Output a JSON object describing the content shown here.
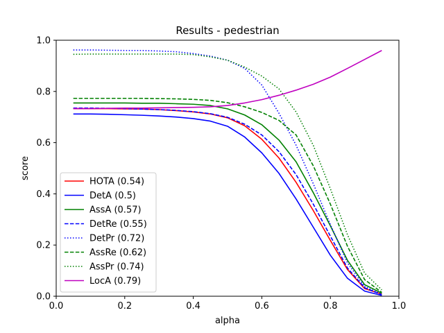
{
  "chart_data": {
    "type": "line",
    "title": "Results - pedestrian",
    "xlabel": "alpha",
    "ylabel": "score",
    "xlim": [
      0.0,
      1.0
    ],
    "ylim": [
      0.0,
      1.0
    ],
    "x_ticks": [
      "0.0",
      "0.2",
      "0.4",
      "0.6",
      "0.8",
      "1.0"
    ],
    "y_ticks": [
      "0.0",
      "0.2",
      "0.4",
      "0.6",
      "0.8",
      "1.0"
    ],
    "grid": false,
    "legend_position": "lower-left",
    "x": [
      0.05,
      0.1,
      0.15,
      0.2,
      0.25,
      0.3,
      0.35,
      0.4,
      0.45,
      0.5,
      0.55,
      0.6,
      0.65,
      0.7,
      0.75,
      0.8,
      0.85,
      0.9,
      0.95
    ],
    "series": [
      {
        "name": "HOTA (0.54)",
        "color": "#ff0000",
        "dash": "solid",
        "values": [
          0.733,
          0.733,
          0.733,
          0.732,
          0.731,
          0.729,
          0.725,
          0.72,
          0.712,
          0.697,
          0.666,
          0.613,
          0.54,
          0.445,
          0.335,
          0.218,
          0.104,
          0.03,
          0.008
        ]
      },
      {
        "name": "DetA (0.5)",
        "color": "#0000ff",
        "dash": "solid",
        "values": [
          0.712,
          0.712,
          0.711,
          0.709,
          0.707,
          0.704,
          0.7,
          0.694,
          0.684,
          0.664,
          0.622,
          0.56,
          0.48,
          0.38,
          0.27,
          0.16,
          0.07,
          0.02,
          0.003
        ]
      },
      {
        "name": "AssA (0.57)",
        "color": "#008000",
        "dash": "solid",
        "values": [
          0.755,
          0.755,
          0.755,
          0.755,
          0.754,
          0.754,
          0.752,
          0.75,
          0.745,
          0.732,
          0.708,
          0.67,
          0.61,
          0.525,
          0.405,
          0.275,
          0.14,
          0.045,
          0.012
        ]
      },
      {
        "name": "DetRe (0.55)",
        "color": "#0000ff",
        "dash": "dashed",
        "values": [
          0.735,
          0.735,
          0.734,
          0.733,
          0.731,
          0.729,
          0.726,
          0.721,
          0.713,
          0.699,
          0.672,
          0.63,
          0.565,
          0.475,
          0.36,
          0.235,
          0.11,
          0.033,
          0.006
        ]
      },
      {
        "name": "DetPr (0.72)",
        "color": "#0000ff",
        "dash": "dotted",
        "values": [
          0.962,
          0.962,
          0.961,
          0.96,
          0.96,
          0.958,
          0.955,
          0.948,
          0.938,
          0.922,
          0.89,
          0.825,
          0.715,
          0.59,
          0.44,
          0.28,
          0.13,
          0.038,
          0.007
        ]
      },
      {
        "name": "AssRe (0.62)",
        "color": "#008000",
        "dash": "dashed",
        "values": [
          0.773,
          0.773,
          0.773,
          0.773,
          0.773,
          0.772,
          0.771,
          0.769,
          0.765,
          0.756,
          0.74,
          0.718,
          0.687,
          0.63,
          0.51,
          0.36,
          0.195,
          0.065,
          0.015
        ]
      },
      {
        "name": "AssPr (0.74)",
        "color": "#008000",
        "dash": "dotted",
        "values": [
          0.945,
          0.946,
          0.946,
          0.946,
          0.946,
          0.946,
          0.946,
          0.944,
          0.935,
          0.922,
          0.895,
          0.86,
          0.81,
          0.72,
          0.59,
          0.42,
          0.24,
          0.09,
          0.025
        ]
      },
      {
        "name": "LocA (0.79)",
        "color": "#bf00bf",
        "dash": "solid",
        "values": [
          0.733,
          0.733,
          0.734,
          0.735,
          0.735,
          0.736,
          0.737,
          0.738,
          0.74,
          0.745,
          0.755,
          0.768,
          0.785,
          0.805,
          0.828,
          0.856,
          0.89,
          0.925,
          0.96
        ]
      }
    ]
  }
}
